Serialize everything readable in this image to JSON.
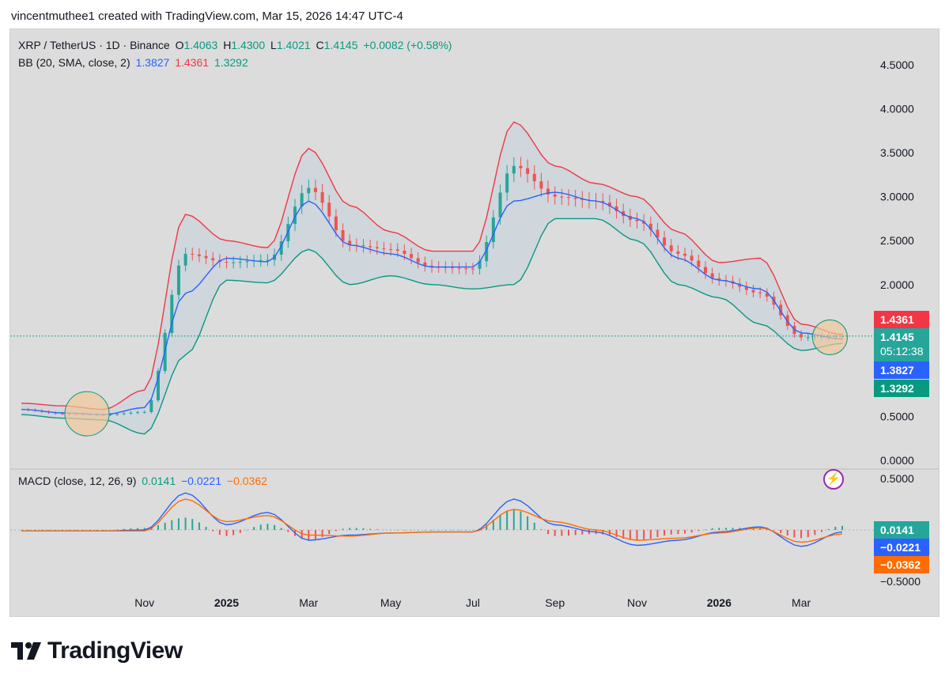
{
  "header": {
    "attribution": "vincentmuthee1 created with TradingView.com, Mar 15, 2026 14:47 UTC-4"
  },
  "legend": {
    "symbol": "XRP / TetherUS · 1D · Binance",
    "o_label": "O",
    "o": "1.4063",
    "h_label": "H",
    "h": "1.4300",
    "l_label": "L",
    "l": "1.4021",
    "c_label": "C",
    "c": "1.4145",
    "change": "+0.0082 (+0.58%)",
    "bb_label": "BB (20, SMA, close, 2)",
    "bb_basis": "1.3827",
    "bb_upper": "1.4361",
    "bb_lower": "1.3292",
    "macd_label": "MACD (close, 12, 26, 9)",
    "macd_hist": "0.0141",
    "macd_line": "−0.0221",
    "macd_signal": "−0.0362"
  },
  "badges": {
    "upper": "1.4361",
    "price": "1.4145",
    "countdown": "05:12:38",
    "basis": "1.3827",
    "lower": "1.3292",
    "macd_hist": "0.0141",
    "macd_line": "−0.0221",
    "macd_signal": "−0.0362"
  },
  "colors": {
    "up": "#26a69a",
    "down": "#ef5350",
    "basis": "#2962ff",
    "upper": "#f23645",
    "lower": "#089981",
    "macd": "#2962ff",
    "signal": "#ff6d00",
    "band_fill": "#c9d3dc",
    "highlight": "#f0c89a"
  },
  "icons": {
    "logo": "tradingview-logo-icon",
    "alert": "lightning-icon"
  },
  "brand": "TradingView",
  "chart_data": {
    "type": "candlestick",
    "symbol": "XRP/USDT",
    "timeframe": "1D",
    "price_axis": {
      "ticks": [
        "4.5000",
        "4.0000",
        "3.5000",
        "3.0000",
        "2.5000",
        "2.0000",
        "0.5000",
        "0.0000"
      ],
      "ylim": [
        0,
        4.7
      ]
    },
    "macd_axis": {
      "ticks": [
        "0.5000",
        "−0.5000"
      ],
      "ylim": [
        -0.6,
        0.55
      ]
    },
    "x_ticks": [
      "Nov",
      "2025",
      "Mar",
      "May",
      "Jul",
      "Sep",
      "Nov",
      "2026",
      "Mar"
    ],
    "x_tick_index": [
      3,
      5,
      7,
      9,
      11,
      13,
      15,
      17,
      19
    ],
    "months": [
      0,
      1,
      2,
      3,
      4,
      5,
      6,
      7,
      8,
      9,
      10,
      11,
      12,
      13,
      14,
      15,
      16,
      17,
      18,
      19,
      20
    ],
    "series": [
      {
        "name": "close",
        "values": [
          0.58,
          0.53,
          0.52,
          0.55,
          2.35,
          2.25,
          2.28,
          3.1,
          2.45,
          2.4,
          2.2,
          2.18,
          3.35,
          3.0,
          2.95,
          2.72,
          2.35,
          2.05,
          1.9,
          1.4,
          1.41
        ]
      },
      {
        "name": "bb_basis",
        "values": [
          0.58,
          0.54,
          0.52,
          0.6,
          1.9,
          2.3,
          2.26,
          2.95,
          2.45,
          2.35,
          2.2,
          2.2,
          2.95,
          3.05,
          2.95,
          2.75,
          2.3,
          2.05,
          1.95,
          1.45,
          1.38
        ]
      },
      {
        "name": "bb_upper",
        "values": [
          0.65,
          0.62,
          0.58,
          0.8,
          2.8,
          2.5,
          2.42,
          3.55,
          2.9,
          2.6,
          2.38,
          2.38,
          3.85,
          3.35,
          3.15,
          3.0,
          2.6,
          2.25,
          2.3,
          1.55,
          1.43
        ]
      },
      {
        "name": "bb_lower",
        "values": [
          0.52,
          0.48,
          0.46,
          0.3,
          1.2,
          2.05,
          2.02,
          2.4,
          2.0,
          2.1,
          2.0,
          1.95,
          2.0,
          2.75,
          2.75,
          2.5,
          2.0,
          1.85,
          1.55,
          1.25,
          1.33
        ]
      },
      {
        "name": "macd",
        "values": [
          -0.01,
          -0.01,
          -0.01,
          0.0,
          0.36,
          0.05,
          0.17,
          -0.1,
          -0.05,
          -0.03,
          -0.02,
          -0.02,
          0.3,
          0.05,
          -0.02,
          -0.15,
          -0.1,
          -0.02,
          0.03,
          -0.16,
          -0.02
        ]
      },
      {
        "name": "signal",
        "values": [
          -0.01,
          -0.01,
          -0.01,
          -0.01,
          0.3,
          0.08,
          0.14,
          -0.05,
          -0.06,
          -0.03,
          -0.02,
          -0.02,
          0.2,
          0.08,
          0.0,
          -0.1,
          -0.08,
          -0.03,
          0.02,
          -0.12,
          -0.04
        ]
      }
    ]
  }
}
